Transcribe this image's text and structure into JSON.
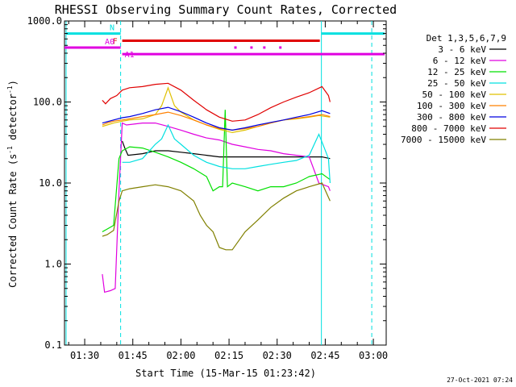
{
  "chart_data": {
    "type": "line",
    "title": "RHESSI Observing Summary Count Rates, Corrected",
    "xlabel": "Start Time (15-Mar-15 01:23:42)",
    "ylabel_main": "Corrected Count Rate (s",
    "ylabel_exp": "-1",
    "ylabel_tail": " detector",
    "ylabel_close": ")",
    "yscale": "log",
    "ylim": [
      0.1,
      1000
    ],
    "y_tick_labels": [
      "0.1",
      "1.0",
      "10.0",
      "100.0",
      "1000.0"
    ],
    "y_ticks": [
      0.1,
      1,
      10,
      100,
      1000
    ],
    "xlim_minutes": [
      83.7,
      184
    ],
    "x_ticks": [
      {
        "t": 90,
        "label": "01:30"
      },
      {
        "t": 105,
        "label": "01:45"
      },
      {
        "t": 120,
        "label": "02:00"
      },
      {
        "t": 135,
        "label": "02:15"
      },
      {
        "t": 150,
        "label": "02:30"
      },
      {
        "t": 165,
        "label": "02:45"
      },
      {
        "t": 180,
        "label": "03:00"
      }
    ],
    "legend_title": "Det 1,3,5,6,7,9",
    "series": [
      {
        "name": "3 - 6 keV",
        "color": "#000000",
        "points": [
          [
            101.7,
            33
          ],
          [
            102.5,
            27
          ],
          [
            103.5,
            22
          ],
          [
            108,
            23
          ],
          [
            112,
            25
          ],
          [
            116,
            25
          ],
          [
            120,
            24
          ],
          [
            124,
            23
          ],
          [
            128,
            22
          ],
          [
            132,
            21
          ],
          [
            136,
            21
          ],
          [
            140,
            21
          ],
          [
            144,
            21
          ],
          [
            148,
            21
          ],
          [
            152,
            21
          ],
          [
            156,
            21
          ],
          [
            160,
            21
          ],
          [
            164,
            21
          ],
          [
            166.5,
            20
          ],
          [
            166.5,
            20
          ]
        ]
      },
      {
        "name": "6 - 12 keV",
        "color": "#e000e0",
        "points": [
          [
            95.5,
            0.75
          ],
          [
            96.2,
            0.45
          ],
          [
            98,
            0.47
          ],
          [
            99.5,
            0.5
          ],
          [
            100.7,
            8
          ],
          [
            101.7,
            55
          ],
          [
            103,
            52
          ],
          [
            108,
            55
          ],
          [
            112,
            55
          ],
          [
            116,
            50
          ],
          [
            120,
            45
          ],
          [
            124,
            40
          ],
          [
            128,
            36
          ],
          [
            132,
            34
          ],
          [
            136,
            30
          ],
          [
            140,
            28
          ],
          [
            144,
            26
          ],
          [
            148,
            25
          ],
          [
            152,
            23
          ],
          [
            156,
            22
          ],
          [
            160,
            21
          ],
          [
            163,
            10
          ],
          [
            166,
            9
          ],
          [
            166.5,
            8
          ]
        ]
      },
      {
        "name": "12 - 25 keV",
        "color": "#00e000",
        "points": [
          [
            95.5,
            2.5
          ],
          [
            97,
            2.7
          ],
          [
            99,
            3
          ],
          [
            100.7,
            20
          ],
          [
            101.7,
            25
          ],
          [
            104,
            28
          ],
          [
            108,
            27
          ],
          [
            112,
            24
          ],
          [
            116,
            21
          ],
          [
            120,
            18
          ],
          [
            124,
            15
          ],
          [
            128,
            12
          ],
          [
            130,
            8
          ],
          [
            132,
            9
          ],
          [
            133,
            9
          ],
          [
            133.8,
            80
          ],
          [
            134.5,
            9
          ],
          [
            136,
            10
          ],
          [
            140,
            9
          ],
          [
            144,
            8
          ],
          [
            148,
            9
          ],
          [
            152,
            9
          ],
          [
            156,
            10
          ],
          [
            160,
            12
          ],
          [
            164,
            13
          ],
          [
            166.5,
            11
          ]
        ]
      },
      {
        "name": "25 - 50 keV",
        "color": "#00e0e0",
        "points": [
          [
            101.7,
            18
          ],
          [
            104,
            18
          ],
          [
            108,
            20
          ],
          [
            112,
            30
          ],
          [
            114,
            35
          ],
          [
            116,
            52
          ],
          [
            118,
            35
          ],
          [
            120,
            30
          ],
          [
            124,
            22
          ],
          [
            128,
            18
          ],
          [
            132,
            16
          ],
          [
            136,
            15
          ],
          [
            140,
            15
          ],
          [
            144,
            16
          ],
          [
            148,
            17
          ],
          [
            152,
            18
          ],
          [
            156,
            19
          ],
          [
            160,
            22
          ],
          [
            163,
            40
          ],
          [
            164,
            32
          ],
          [
            166,
            20
          ],
          [
            166.5,
            10
          ]
        ]
      },
      {
        "name": "50 - 100 keV",
        "color": "#e0c000",
        "points": [
          [
            95.5,
            50
          ],
          [
            97,
            52
          ],
          [
            99,
            55
          ],
          [
            101.7,
            58
          ],
          [
            104,
            60
          ],
          [
            108,
            62
          ],
          [
            112,
            70
          ],
          [
            114,
            90
          ],
          [
            116,
            150
          ],
          [
            118,
            90
          ],
          [
            120,
            75
          ],
          [
            124,
            60
          ],
          [
            128,
            52
          ],
          [
            132,
            46
          ],
          [
            136,
            42
          ],
          [
            140,
            45
          ],
          [
            144,
            50
          ],
          [
            148,
            55
          ],
          [
            152,
            60
          ],
          [
            156,
            62
          ],
          [
            160,
            65
          ],
          [
            163,
            68
          ],
          [
            166.5,
            65
          ]
        ]
      },
      {
        "name": "100 - 300 keV",
        "color": "#ff8000",
        "points": [
          [
            95.5,
            52
          ],
          [
            97,
            55
          ],
          [
            99,
            58
          ],
          [
            101.7,
            60
          ],
          [
            104,
            62
          ],
          [
            108,
            66
          ],
          [
            112,
            70
          ],
          [
            116,
            75
          ],
          [
            120,
            68
          ],
          [
            124,
            60
          ],
          [
            128,
            52
          ],
          [
            132,
            47
          ],
          [
            136,
            45
          ],
          [
            140,
            47
          ],
          [
            144,
            50
          ],
          [
            148,
            55
          ],
          [
            152,
            60
          ],
          [
            156,
            63
          ],
          [
            160,
            66
          ],
          [
            164,
            70
          ],
          [
            166.5,
            66
          ]
        ]
      },
      {
        "name": "300 - 800 keV",
        "color": "#0000e0",
        "points": [
          [
            95.5,
            55
          ],
          [
            97,
            57
          ],
          [
            99,
            60
          ],
          [
            101.7,
            64
          ],
          [
            104,
            66
          ],
          [
            108,
            72
          ],
          [
            112,
            80
          ],
          [
            116,
            86
          ],
          [
            120,
            76
          ],
          [
            124,
            65
          ],
          [
            128,
            55
          ],
          [
            132,
            48
          ],
          [
            136,
            45
          ],
          [
            140,
            48
          ],
          [
            144,
            52
          ],
          [
            148,
            56
          ],
          [
            152,
            60
          ],
          [
            156,
            65
          ],
          [
            160,
            70
          ],
          [
            164,
            78
          ],
          [
            166.5,
            72
          ]
        ]
      },
      {
        "name": "800 - 7000 keV",
        "color": "#e00000",
        "points": [
          [
            95.5,
            105
          ],
          [
            96.5,
            95
          ],
          [
            98,
            110
          ],
          [
            100,
            120
          ],
          [
            101.7,
            140
          ],
          [
            104,
            150
          ],
          [
            108,
            155
          ],
          [
            112,
            165
          ],
          [
            116,
            170
          ],
          [
            120,
            140
          ],
          [
            124,
            105
          ],
          [
            128,
            80
          ],
          [
            132,
            65
          ],
          [
            136,
            58
          ],
          [
            140,
            60
          ],
          [
            144,
            70
          ],
          [
            148,
            85
          ],
          [
            152,
            100
          ],
          [
            156,
            115
          ],
          [
            160,
            130
          ],
          [
            164,
            155
          ],
          [
            166,
            120
          ],
          [
            166.5,
            100
          ]
        ]
      },
      {
        "name": "7000 - 15000 keV",
        "color": "#808000",
        "points": [
          [
            95.5,
            2.2
          ],
          [
            97,
            2.3
          ],
          [
            99,
            2.6
          ],
          [
            100.7,
            6
          ],
          [
            101.7,
            8
          ],
          [
            104,
            8.5
          ],
          [
            108,
            9
          ],
          [
            112,
            9.5
          ],
          [
            116,
            9
          ],
          [
            120,
            8
          ],
          [
            124,
            6
          ],
          [
            126,
            4
          ],
          [
            128,
            3
          ],
          [
            130,
            2.5
          ],
          [
            132,
            1.6
          ],
          [
            134,
            1.5
          ],
          [
            136,
            1.5
          ],
          [
            140,
            2.5
          ],
          [
            144,
            3.5
          ],
          [
            148,
            5
          ],
          [
            152,
            6.5
          ],
          [
            156,
            8
          ],
          [
            160,
            9
          ],
          [
            164,
            10
          ],
          [
            166.5,
            6
          ]
        ]
      }
    ],
    "vlines": [
      {
        "t": 84.2,
        "style": "solid"
      },
      {
        "t": 101.2,
        "style": "dashed"
      },
      {
        "t": 163.8,
        "style": "solid"
      },
      {
        "t": 179.5,
        "style": "dashed"
      }
    ],
    "flags": [
      {
        "label": "N",
        "color": "#00e0e0",
        "y": 700,
        "segments": [
          [
            84.2,
            101.2
          ],
          [
            163.8,
            183.5
          ]
        ]
      },
      {
        "label": "F",
        "color": "#e00000",
        "y": 570,
        "segments": [
          [
            101.7,
            163.3
          ]
        ]
      },
      {
        "label": "A0",
        "color": "#e000e0",
        "y": 470,
        "segments": [
          [
            83.7,
            101.2
          ]
        ]
      },
      {
        "label": "A1",
        "color": "#e000e0",
        "y": 390,
        "segments": [
          [
            101.7,
            183.5
          ]
        ]
      }
    ],
    "flag_dots": {
      "color": "#e000e0",
      "y": 470,
      "t": [
        137,
        142,
        146,
        151
      ]
    },
    "timestamp": "27-Oct-2021 07:24"
  }
}
